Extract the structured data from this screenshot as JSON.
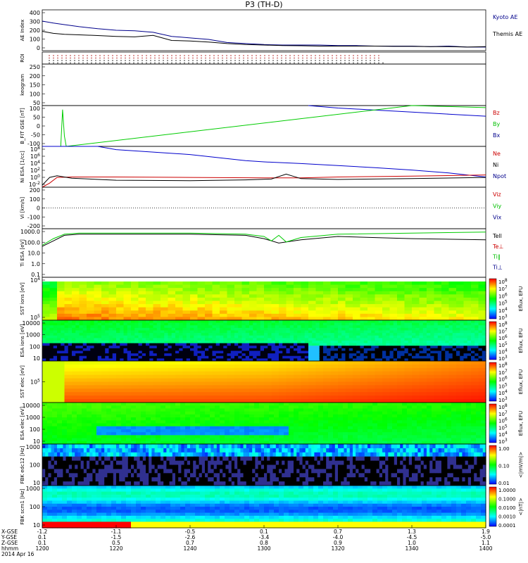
{
  "chart_data": {
    "type": "line",
    "title": "P3 (TH-D)",
    "x_time_labels": [
      "1200",
      "1220",
      "1240",
      "1300",
      "1320",
      "1340",
      "1400"
    ],
    "x_rows": [
      {
        "name": "X-GSE",
        "values": [
          "-1.2",
          "-1.1",
          "-0.5",
          "0.1",
          "0.7",
          "1.3",
          "1.9"
        ]
      },
      {
        "name": "Y-GSE",
        "values": [
          "0.1",
          "-1.5",
          "-2.6",
          "-3.4",
          "-4.0",
          "-4.5",
          "-5.0"
        ]
      },
      {
        "name": "Z-GSE",
        "values": [
          "0.1",
          "0.5",
          "0.7",
          "0.8",
          "0.9",
          "1.0",
          "1.1"
        ]
      }
    ],
    "x_row_labels": [
      "X-GSE",
      "Y-GSE",
      "Z-GSE",
      "hhmm",
      "2014 Apr 16"
    ],
    "panels": [
      {
        "id": "ae",
        "ylabel": "AE Index",
        "yticks": [
          "400",
          "300",
          "200",
          "100",
          "0"
        ],
        "ylim": [
          0,
          400
        ],
        "legend": [
          {
            "name": "Kyoto AE",
            "color": "#00008b"
          },
          {
            "name": "Themis AE",
            "color": "#000000"
          }
        ],
        "series": [
          {
            "name": "Kyoto AE",
            "color": "#00008b",
            "t": [
              0,
              3,
              6,
              10,
              15,
              20,
              25,
              30,
              35,
              40,
              45,
              50,
              55,
              60,
              65,
              70,
              75,
              80,
              85,
              90,
              95,
              100,
              105,
              110,
              115,
              120
            ],
            "v": [
              290,
              270,
              255,
              235,
              215,
              200,
              195,
              180,
              140,
              125,
              110,
              80,
              70,
              60,
              55,
              55,
              55,
              50,
              50,
              45,
              45,
              45,
              40,
              45,
              35,
              35
            ]
          },
          {
            "name": "Themis AE",
            "color": "#000000",
            "t": [
              0,
              3,
              6,
              10,
              15,
              20,
              25,
              30,
              35,
              40,
              45,
              50,
              55,
              60,
              65,
              70,
              75,
              80,
              85,
              90,
              95,
              100,
              105,
              110,
              115,
              120
            ],
            "v": [
              190,
              170,
              160,
              155,
              148,
              140,
              135,
              150,
              100,
              95,
              85,
              70,
              60,
              55,
              50,
              48,
              45,
              45,
              45,
              45,
              42,
              42,
              40,
              40,
              35,
              40
            ]
          }
        ]
      },
      {
        "id": "roi",
        "ylabel": "ROI"
      },
      {
        "id": "keogram",
        "ylabel": "keogram",
        "yticks": [
          "250",
          "200",
          "150",
          "100",
          "50"
        ]
      },
      {
        "id": "bfit",
        "ylabel": "B_FIT GSE [nT]",
        "yticks": [
          "100",
          "50",
          "0",
          "-50",
          "-100"
        ],
        "ylim": [
          -100,
          100
        ],
        "legend": [
          {
            "name": "Bz",
            "color": "#cc0000"
          },
          {
            "name": "By",
            "color": "#00c000"
          },
          {
            "name": "Bx",
            "color": "#00008b"
          }
        ],
        "series": [
          {
            "name": "Bx",
            "color": "#0000cc",
            "t": [
              72,
              80,
              90,
              100,
              110,
              120
            ],
            "v": [
              100,
              88,
              78,
              68,
              58,
              48
            ]
          },
          {
            "name": "By",
            "color": "#00cc00",
            "t": [
              5,
              5.5,
              6,
              6.5,
              100,
              110,
              120
            ],
            "v": [
              -100,
              80,
              -50,
              -100,
              100,
              95,
              90
            ]
          }
        ]
      },
      {
        "id": "ni",
        "ylabel": "Ni ESA [1/cc]",
        "yticks": [
          "10^8",
          "10^6",
          "10^4",
          "10^2",
          "10^0",
          "10^-2"
        ],
        "ylim": [
          -2,
          8
        ],
        "legend": [
          {
            "name": "Ne",
            "color": "#cc0000"
          },
          {
            "name": "Ni",
            "color": "#000000"
          },
          {
            "name": "Npot",
            "color": "#00008b"
          }
        ],
        "series": [
          {
            "name": "Npot",
            "color": "#0000cc",
            "t": [
              0,
              15,
              20,
              30,
              40,
              50,
              55,
              60,
              70,
              80,
              90,
              100,
              110,
              120
            ],
            "v": [
              8,
              8,
              7.2,
              6.6,
              6,
              5,
              4.5,
              4.2,
              3.8,
              3.3,
              2.8,
              2.2,
              1.5,
              0.5
            ]
          },
          {
            "name": "Ne",
            "color": "#cc0000",
            "t": [
              0,
              2,
              4,
              8,
              20,
              40,
              60,
              70,
              80,
              100,
              120
            ],
            "v": [
              -2,
              -1,
              0.4,
              0.5,
              0.5,
              0.4,
              0.3,
              0.3,
              0.5,
              0.7,
              1
            ]
          },
          {
            "name": "Ni",
            "color": "#000000",
            "t": [
              0,
              2,
              4,
              8,
              20,
              40,
              55,
              62,
              66,
              70,
              80,
              100,
              120
            ],
            "v": [
              -1.5,
              0.4,
              0.8,
              0.2,
              -0.3,
              -0.4,
              -0.2,
              0,
              1.2,
              0.1,
              -0.1,
              0.1,
              0.4
            ]
          }
        ]
      },
      {
        "id": "vi",
        "ylabel": "Vi [km/s]",
        "yticks": [
          "200",
          "100",
          "0",
          "-100",
          "-200"
        ],
        "ylim": [
          -200,
          200
        ],
        "legend": [
          {
            "name": "Viz",
            "color": "#cc0000"
          },
          {
            "name": "Viy",
            "color": "#00c000"
          },
          {
            "name": "Vix",
            "color": "#00008b"
          }
        ]
      },
      {
        "id": "ti",
        "ylabel": "Ti ESA [eV]",
        "yticks": [
          "1000.0",
          "100.0",
          "10.0",
          "1.0",
          "0.1"
        ],
        "ylim": [
          -1,
          3.4
        ],
        "legend": [
          {
            "name": "Tell",
            "color": "#000000"
          },
          {
            "name": "Te⊥",
            "color": "#cc0000"
          },
          {
            "name": "Ti‖",
            "color": "#00c000"
          },
          {
            "name": "Ti⊥",
            "color": "#00008b"
          }
        ],
        "series": [
          {
            "name": "Tell",
            "color": "#000000",
            "t": [
              0,
              3,
              6,
              10,
              20,
              40,
              55,
              60,
              64,
              70,
              80,
              100,
              120
            ],
            "v": [
              1.8,
              2.3,
              2.8,
              2.9,
              2.9,
              2.9,
              2.8,
              2.5,
              2.1,
              2.4,
              2.7,
              2.5,
              2.4
            ]
          },
          {
            "name": "Ti‖",
            "color": "#00cc00",
            "t": [
              0,
              3,
              6,
              10,
              20,
              40,
              55,
              60,
              62,
              64,
              66,
              70,
              80,
              100,
              120
            ],
            "v": [
              1.9,
              2.5,
              2.9,
              3.0,
              3.0,
              3.0,
              2.9,
              2.7,
              2.3,
              2.8,
              2.2,
              2.6,
              2.9,
              3.0,
              3.1
            ]
          }
        ]
      },
      {
        "id": "sst_ion",
        "ylabel": "SST ions [eV]",
        "yticks": [
          "10^4",
          "10^5"
        ],
        "colorbar": [
          "10^8",
          "10^7",
          "10^6",
          "10^5",
          "10^4",
          "10^3"
        ],
        "cblabel": "Eflux, EFU"
      },
      {
        "id": "esa_ion",
        "ylabel": "ESA ions [eV]",
        "yticks": [
          "10000",
          "1000",
          "100",
          "10"
        ],
        "colorbar": [
          "10^8",
          "10^7",
          "10^6",
          "10^5",
          "10^4",
          "10^3"
        ],
        "cblabel": "Eflux, EFU"
      },
      {
        "id": "sst_elec",
        "ylabel": "SST elec [eV]",
        "yticks": [
          "10^5"
        ],
        "colorbar": [
          "10^8",
          "10^7",
          "10^6",
          "10^5",
          "10^4",
          "10^3"
        ],
        "cblabel": "Eflux, EFU"
      },
      {
        "id": "esa_elec",
        "ylabel": "ESA elec [eV]",
        "yticks": [
          "10000",
          "1000",
          "100",
          "10"
        ],
        "colorbar": [
          "10^8",
          "10^7",
          "10^6",
          "10^5",
          "10^4",
          "10^3"
        ],
        "cblabel": "Eflux, EFU"
      },
      {
        "id": "fbk_edc",
        "ylabel": "FBK edc12 [Hz]",
        "yticks": [
          "1000",
          "100",
          "10"
        ],
        "colorbar": [
          "1.00",
          "0.10",
          "0.01"
        ],
        "cblabel": "<|mV/m|>"
      },
      {
        "id": "fbk_scm",
        "ylabel": "FBK scm1 [Hz]",
        "yticks": [
          "1000",
          "100",
          "10"
        ],
        "colorbar": [
          "1.0000",
          "0.1000",
          "0.0100",
          "0.0010",
          "0.0001"
        ],
        "cblabel": "<|nT|>"
      }
    ]
  }
}
